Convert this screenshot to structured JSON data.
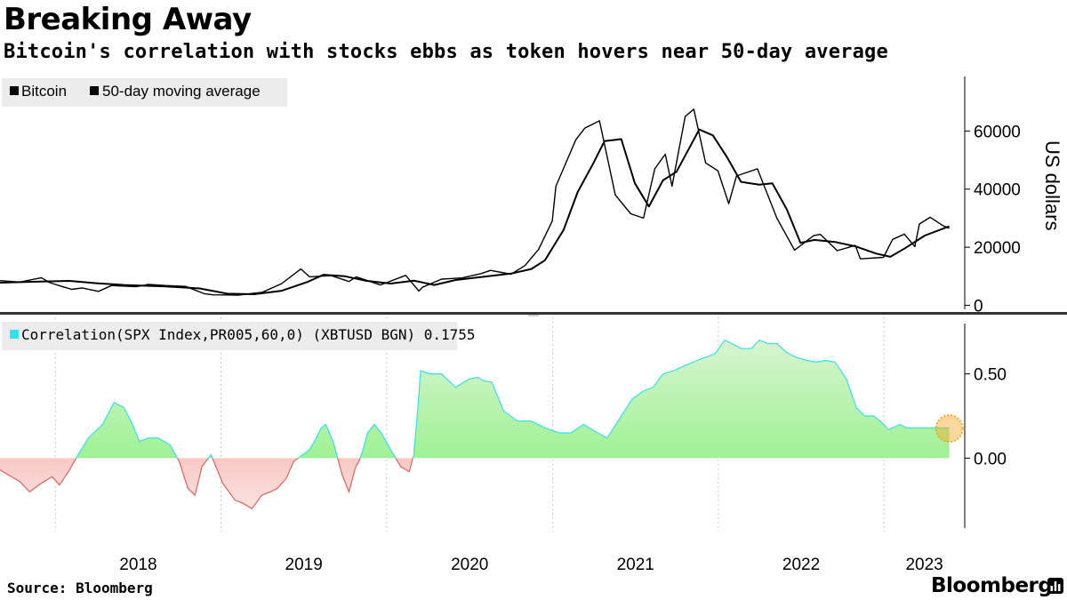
{
  "header": {
    "title": "Breaking Away",
    "subtitle": "Bitcoin's correlation with stocks ebbs as token hovers near 50-day average"
  },
  "footer": {
    "source": "Source: Bloomberg",
    "brand": "Bloomberg"
  },
  "colors": {
    "price_line": "#000000",
    "positive_fill_top": "#d8f5d0",
    "positive_fill_bottom": "#86f07a",
    "positive_edge": "#33e0ee",
    "negative_fill": "#f28b82",
    "legend_bg": "#ececec",
    "highlight": "#f5a623"
  },
  "chart_data": [
    {
      "type": "line",
      "legend_placement": "top-left",
      "yaxis_side": "right",
      "ylabel": "US dollars",
      "ylim": [
        -2000,
        80000
      ],
      "yticks": [
        0,
        20000,
        40000,
        60000
      ],
      "ytick_labels": [
        "0",
        "20000",
        "40000",
        "60000"
      ],
      "grid": "vertical-dashed",
      "series": [
        {
          "name": "Bitcoin",
          "x": [
            "2017-09-01",
            "2017-10-15",
            "2017-12-01",
            "2017-12-20",
            "2018-01-15",
            "2018-02-06",
            "2018-03-01",
            "2018-04-06",
            "2018-05-05",
            "2018-06-29",
            "2018-07-25",
            "2018-09-01",
            "2018-10-15",
            "2018-11-25",
            "2018-12-15",
            "2019-02-08",
            "2019-04-02",
            "2019-05-15",
            "2019-06-26",
            "2019-07-15",
            "2019-09-01",
            "2019-10-10",
            "2019-10-26",
            "2019-12-18",
            "2020-02-12",
            "2020-03-12",
            "2020-03-20",
            "2020-05-01",
            "2020-06-15",
            "2020-07-27",
            "2020-08-17",
            "2020-10-01",
            "2020-11-01",
            "2020-12-01",
            "2020-12-31",
            "2021-01-08",
            "2021-02-21",
            "2021-03-13",
            "2021-04-14",
            "2021-05-19",
            "2021-06-22",
            "2021-07-20",
            "2021-08-14",
            "2021-09-06",
            "2021-09-21",
            "2021-10-20",
            "2021-11-08",
            "2021-12-04",
            "2021-12-31",
            "2022-01-24",
            "2022-02-10",
            "2022-03-28",
            "2022-05-10",
            "2022-06-18",
            "2022-07-30",
            "2022-08-14",
            "2022-09-20",
            "2022-10-30",
            "2022-11-10",
            "2022-12-31",
            "2023-01-20",
            "2023-02-15",
            "2023-03-10",
            "2023-03-20",
            "2023-04-13",
            "2023-05-10",
            "2023-05-25"
          ],
          "values": [
            8500,
            8000,
            9500,
            7800,
            6500,
            5500,
            6000,
            4800,
            6800,
            6400,
            7200,
            6800,
            6500,
            4000,
            3600,
            3500,
            4500,
            7500,
            12500,
            9800,
            10200,
            8200,
            9800,
            7000,
            10300,
            4900,
            6200,
            9000,
            9400,
            10900,
            12000,
            10700,
            13700,
            19300,
            29000,
            41000,
            57000,
            61000,
            63500,
            38000,
            31500,
            30000,
            47000,
            52000,
            41000,
            65000,
            67500,
            49000,
            46300,
            35000,
            44500,
            47000,
            30000,
            19000,
            24000,
            24400,
            18800,
            20600,
            16000,
            16500,
            22700,
            24500,
            20200,
            28000,
            30300,
            27500,
            26500
          ]
        },
        {
          "name": "50-day moving average",
          "x": [
            "2017-09-01",
            "2017-12-01",
            "2018-02-01",
            "2018-04-01",
            "2018-06-01",
            "2018-09-01",
            "2018-11-15",
            "2019-01-15",
            "2019-03-15",
            "2019-05-15",
            "2019-07-10",
            "2019-08-15",
            "2019-10-01",
            "2019-11-15",
            "2020-01-10",
            "2020-03-01",
            "2020-04-15",
            "2020-06-01",
            "2020-08-01",
            "2020-10-01",
            "2020-11-15",
            "2020-12-15",
            "2021-01-25",
            "2021-02-25",
            "2021-04-01",
            "2021-04-25",
            "2021-06-01",
            "2021-07-01",
            "2021-08-01",
            "2021-09-01",
            "2021-10-01",
            "2021-11-20",
            "2021-12-20",
            "2022-01-20",
            "2022-02-20",
            "2022-04-01",
            "2022-04-30",
            "2022-06-01",
            "2022-07-01",
            "2022-08-01",
            "2022-09-15",
            "2022-11-01",
            "2022-12-15",
            "2023-01-15",
            "2023-02-15",
            "2023-04-01",
            "2023-05-25"
          ],
          "values": [
            7800,
            8200,
            8400,
            7600,
            7000,
            6500,
            5800,
            4000,
            3800,
            5000,
            8000,
            10500,
            10000,
            8500,
            7500,
            8500,
            7000,
            8700,
            9800,
            10900,
            12500,
            15500,
            26000,
            39000,
            49000,
            56500,
            57200,
            42000,
            34000,
            43000,
            46000,
            60500,
            58500,
            51000,
            42500,
            41500,
            42000,
            33000,
            21500,
            22500,
            21800,
            20200,
            17800,
            16700,
            19500,
            24000,
            27200
          ]
        }
      ]
    },
    {
      "type": "area",
      "legend_placement": "top-left",
      "yaxis_side": "right",
      "ylim": [
        -0.42,
        0.82
      ],
      "yticks": [
        0,
        0.5
      ],
      "ytick_labels": [
        "0.00",
        "0.50"
      ],
      "x_ticks": [
        "2018",
        "2019",
        "2020",
        "2021",
        "2022",
        "2023"
      ],
      "grid": "vertical-dashed",
      "series": [
        {
          "name": "Correlation(SPX Index,PR005,60,0) (XBTUSD BGN) 0.1755",
          "last_value": 0.1755,
          "x": [
            "2017-09-01",
            "2017-10-15",
            "2017-11-05",
            "2017-12-01",
            "2017-12-25",
            "2018-01-10",
            "2018-01-30",
            "2018-02-20",
            "2018-03-15",
            "2018-04-15",
            "2018-05-10",
            "2018-06-01",
            "2018-06-20",
            "2018-07-05",
            "2018-07-25",
            "2018-08-15",
            "2018-09-10",
            "2018-10-01",
            "2018-10-20",
            "2018-11-05",
            "2018-11-20",
            "2018-12-10",
            "2019-01-05",
            "2019-02-01",
            "2019-02-20",
            "2019-03-10",
            "2019-04-01",
            "2019-04-20",
            "2019-05-05",
            "2019-05-25",
            "2019-06-10",
            "2019-06-30",
            "2019-07-15",
            "2019-07-30",
            "2019-08-10",
            "2019-08-20",
            "2019-09-05",
            "2019-09-25",
            "2019-10-10",
            "2019-10-18",
            "2019-10-25",
            "2019-11-01",
            "2019-11-10",
            "2019-11-20",
            "2019-12-05",
            "2019-12-20",
            "2020-01-10",
            "2020-02-01",
            "2020-02-20",
            "2020-03-01",
            "2020-03-10",
            "2020-03-16",
            "2020-04-05",
            "2020-05-01",
            "2020-06-01",
            "2020-07-01",
            "2020-07-20",
            "2020-08-01",
            "2020-08-20",
            "2020-09-15",
            "2020-10-15",
            "2020-11-15",
            "2020-12-15",
            "2021-01-15",
            "2021-02-10",
            "2021-03-10",
            "2021-04-10",
            "2021-05-01",
            "2021-05-25",
            "2021-06-25",
            "2021-07-20",
            "2021-08-10",
            "2021-09-01",
            "2021-09-25",
            "2021-10-20",
            "2021-11-15",
            "2021-12-05",
            "2021-12-25",
            "2022-01-15",
            "2022-01-30",
            "2022-02-20",
            "2022-03-15",
            "2022-04-01",
            "2022-04-20",
            "2022-05-10",
            "2022-05-30",
            "2022-06-20",
            "2022-07-15",
            "2022-08-05",
            "2022-08-25",
            "2022-09-15",
            "2022-10-10",
            "2022-11-01",
            "2022-11-20",
            "2022-12-10",
            "2023-01-01",
            "2023-01-10",
            "2023-01-20",
            "2023-02-05",
            "2023-02-20",
            "2023-03-05",
            "2023-03-15",
            "2023-03-25",
            "2023-04-05",
            "2023-04-20",
            "2023-05-05",
            "2023-05-25"
          ],
          "values": [
            -0.07,
            -0.14,
            -0.2,
            -0.15,
            -0.11,
            -0.16,
            -0.08,
            0.02,
            0.12,
            0.2,
            0.33,
            0.3,
            0.2,
            0.1,
            0.12,
            0.12,
            0.08,
            -0.02,
            -0.18,
            -0.22,
            -0.05,
            0.02,
            -0.15,
            -0.25,
            -0.27,
            -0.3,
            -0.22,
            -0.2,
            -0.18,
            -0.12,
            -0.02,
            0.02,
            0.05,
            0.12,
            0.18,
            0.2,
            0.1,
            -0.1,
            -0.2,
            -0.12,
            -0.05,
            -0.02,
            0.05,
            0.15,
            0.2,
            0.15,
            0.05,
            -0.05,
            -0.08,
            0.02,
            0.3,
            0.52,
            0.5,
            0.5,
            0.42,
            0.47,
            0.48,
            0.46,
            0.45,
            0.28,
            0.22,
            0.22,
            0.18,
            0.15,
            0.15,
            0.2,
            0.15,
            0.12,
            0.22,
            0.35,
            0.4,
            0.42,
            0.5,
            0.52,
            0.55,
            0.58,
            0.6,
            0.62,
            0.7,
            0.68,
            0.65,
            0.65,
            0.7,
            0.68,
            0.68,
            0.63,
            0.6,
            0.58,
            0.57,
            0.58,
            0.57,
            0.47,
            0.3,
            0.25,
            0.25,
            0.2,
            0.17,
            0.18,
            0.2,
            0.18,
            0.18,
            0.18,
            0.18,
            0.18,
            0.18,
            0.18,
            0.18
          ]
        }
      ]
    }
  ]
}
